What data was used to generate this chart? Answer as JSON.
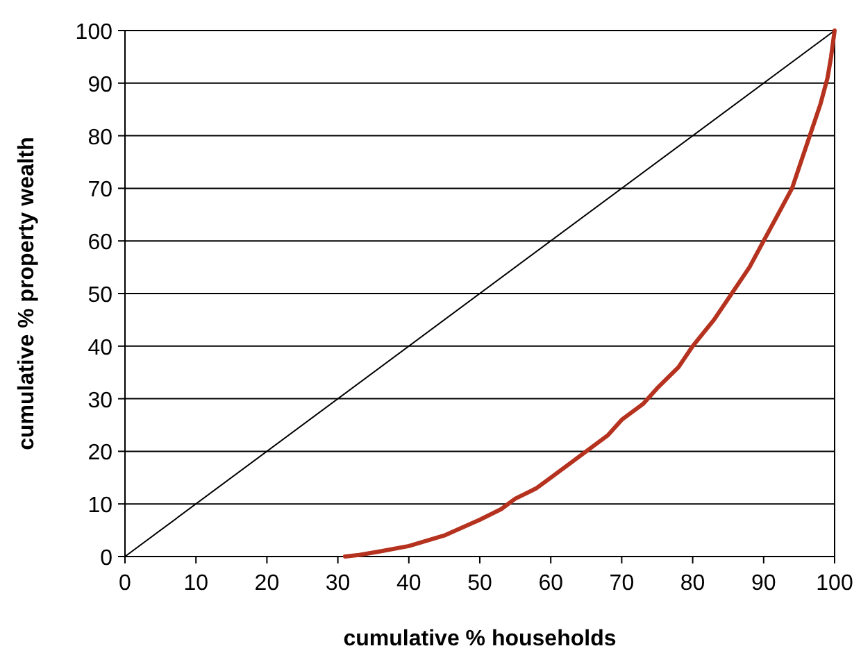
{
  "chart_data": {
    "type": "line",
    "xlabel": "cumulative % households",
    "ylabel": "cumulative % property wealth",
    "xlim": [
      0,
      100
    ],
    "ylim": [
      0,
      100
    ],
    "xticks": [
      0,
      10,
      20,
      30,
      40,
      50,
      60,
      70,
      80,
      90,
      100
    ],
    "yticks": [
      0,
      10,
      20,
      30,
      40,
      50,
      60,
      70,
      80,
      90,
      100
    ],
    "grid": "y",
    "marker": "none",
    "series": [
      {
        "color": "#000000",
        "x": [
          0,
          100
        ],
        "values": [
          0,
          100
        ]
      },
      {
        "color": "#b5321f",
        "x": [
          31,
          33,
          36,
          40,
          45,
          50,
          53,
          55,
          58,
          60,
          63,
          65,
          68,
          70,
          73,
          75,
          78,
          80,
          83,
          85,
          88,
          90,
          92,
          94,
          95,
          96,
          97,
          98,
          99,
          99.5,
          100
        ],
        "values": [
          0,
          0.3,
          1,
          2,
          4,
          7,
          9,
          11,
          13,
          15,
          18,
          20,
          23,
          26,
          29,
          32,
          36,
          40,
          45,
          49,
          55,
          60,
          65,
          70,
          74,
          78,
          82,
          86,
          91,
          95,
          100
        ]
      }
    ]
  }
}
